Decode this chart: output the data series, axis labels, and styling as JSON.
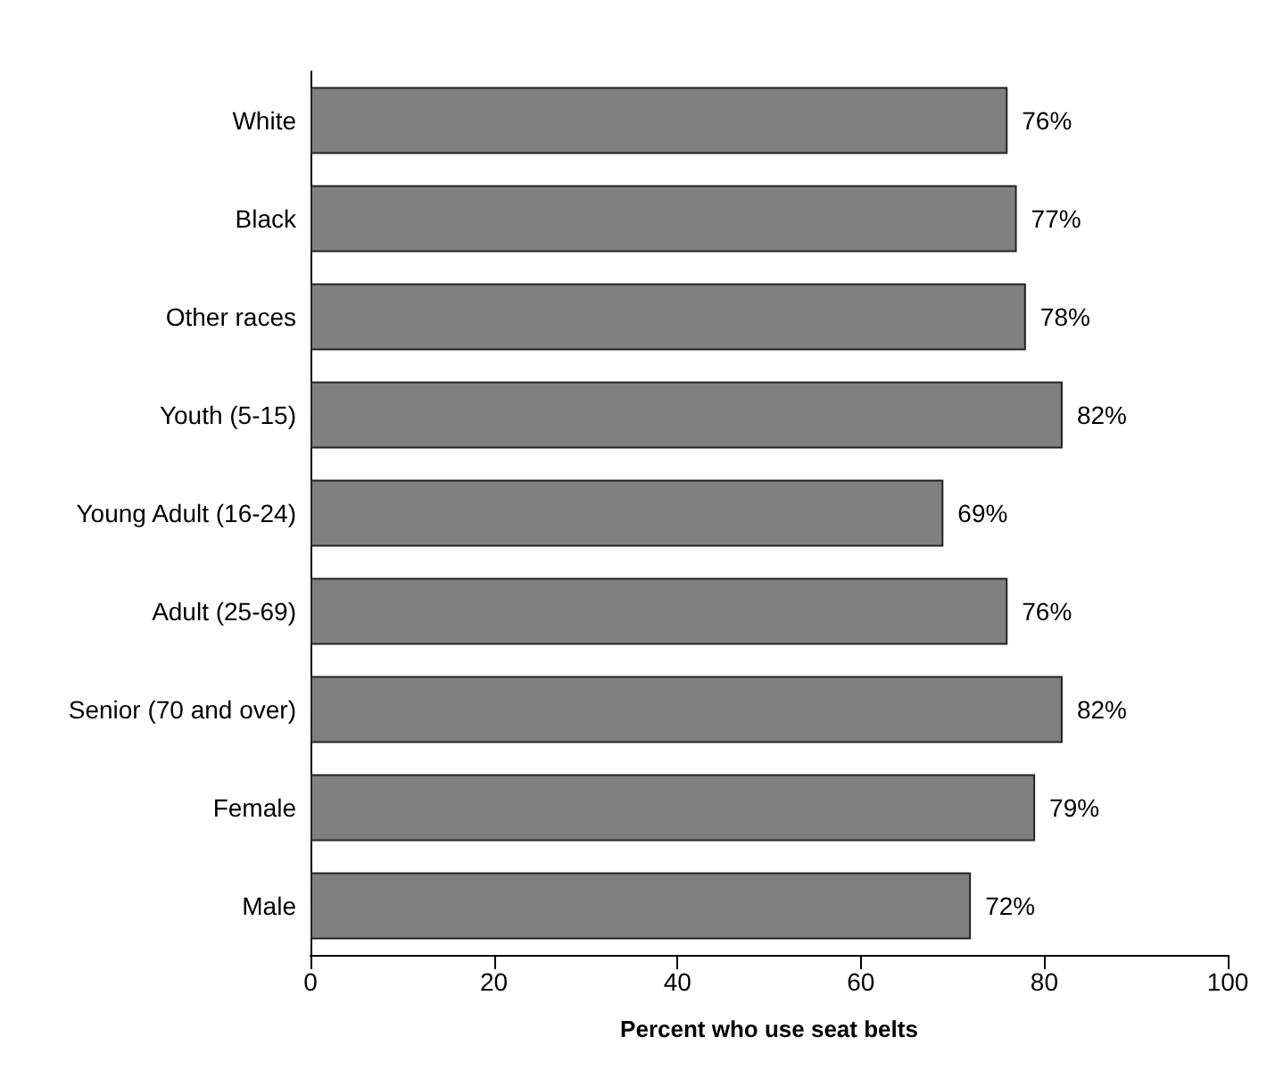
{
  "chart_data": {
    "type": "bar",
    "orientation": "horizontal",
    "xlabel": "Percent who use seat belts",
    "categories": [
      "White",
      "Black",
      "Other races",
      "Youth (5-15)",
      "Young Adult (16-24)",
      "Adult (25-69)",
      "Senior (70 and over)",
      "Female",
      "Male"
    ],
    "values": [
      76,
      77,
      78,
      82,
      69,
      76,
      82,
      79,
      72
    ],
    "value_labels": [
      "76%",
      "77%",
      "78%",
      "82%",
      "69%",
      "76%",
      "82%",
      "79%",
      "72%"
    ],
    "color": "#808080",
    "xlim": [
      0,
      100
    ],
    "xticks": [
      0,
      20,
      40,
      60,
      80,
      100
    ],
    "grid": false
  }
}
